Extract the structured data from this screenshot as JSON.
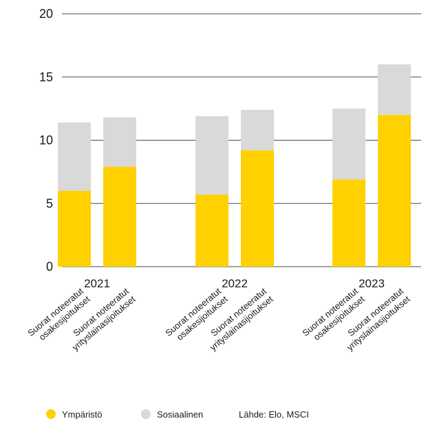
{
  "chart_data": {
    "type": "bar",
    "stacked": true,
    "groups": [
      "2021",
      "2022",
      "2023"
    ],
    "categories": [
      "Suorat noteeratut\nosakesijoitukset",
      "Suorat noteeratut\nyrityslainasijoitukset"
    ],
    "series": [
      {
        "name": "Ympäristö",
        "color": "#FFD100",
        "values": [
          [
            6.0,
            7.9
          ],
          [
            5.7,
            9.2
          ],
          [
            6.9,
            12.0
          ]
        ]
      },
      {
        "name": "Sosiaalinen",
        "color": "#D9D9D9",
        "values": [
          [
            5.4,
            3.9
          ],
          [
            6.2,
            3.2
          ],
          [
            5.6,
            4.0
          ]
        ]
      }
    ],
    "y_ticks": [
      "0",
      "5",
      "10",
      "15",
      "20"
    ],
    "ylim": [
      0,
      20
    ],
    "grid": true,
    "legend_position": "bottom-left",
    "source": "Lähde: Elo, MSCI"
  }
}
